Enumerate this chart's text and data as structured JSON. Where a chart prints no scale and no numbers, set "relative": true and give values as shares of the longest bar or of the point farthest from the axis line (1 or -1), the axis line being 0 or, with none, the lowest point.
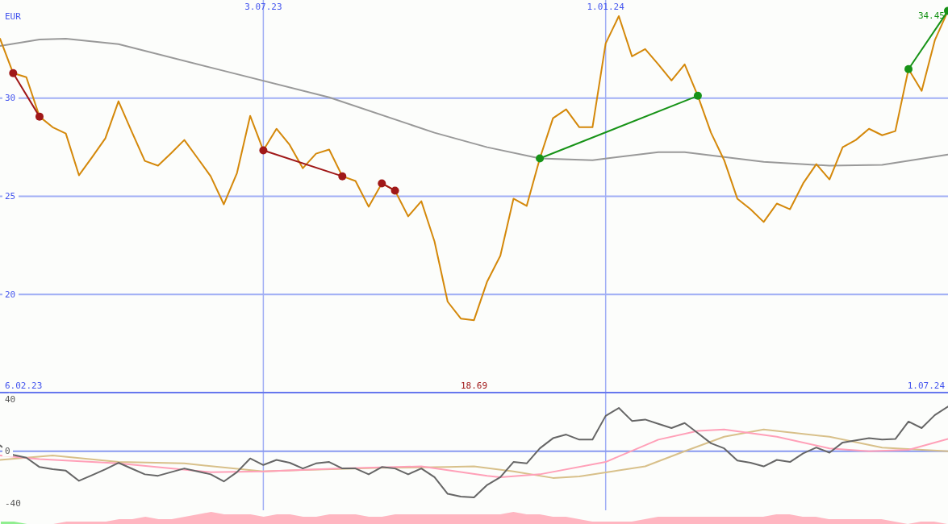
{
  "chart_data": [
    {
      "type": "line",
      "ylabel": "EUR",
      "x": [
        "2023-02-13",
        "2023-02-20",
        "2023-02-27",
        "2023-03-06",
        "2023-03-13",
        "2023-03-20",
        "2023-03-27",
        "2023-04-03",
        "2023-04-10",
        "2023-04-17",
        "2023-04-24",
        "2023-05-01",
        "2023-05-08",
        "2023-05-15",
        "2023-05-22",
        "2023-05-29",
        "2023-06-05",
        "2023-06-12",
        "2023-06-19",
        "2023-06-26",
        "2023-07-03",
        "2023-07-10",
        "2023-07-17",
        "2023-07-24",
        "2023-07-31",
        "2023-08-07",
        "2023-08-14",
        "2023-08-21",
        "2023-08-28",
        "2023-09-04",
        "2023-09-11",
        "2023-09-18",
        "2023-09-25",
        "2023-10-02",
        "2023-10-09",
        "2023-10-16",
        "2023-10-23",
        "2023-10-30",
        "2023-11-06",
        "2023-11-13",
        "2023-11-20",
        "2023-11-27",
        "2023-12-04",
        "2023-12-11",
        "2023-12-18",
        "2023-12-25",
        "2024-01-01",
        "2024-01-08",
        "2024-01-15",
        "2024-01-22",
        "2024-01-29",
        "2024-02-05",
        "2024-02-12",
        "2024-02-19",
        "2024-02-26",
        "2024-03-04",
        "2024-03-11",
        "2024-03-18",
        "2024-03-25",
        "2024-04-01",
        "2024-04-08",
        "2024-04-15",
        "2024-04-22",
        "2024-04-29",
        "2024-05-06",
        "2024-05-13",
        "2024-05-20",
        "2024-05-27",
        "2024-06-03",
        "2024-06-10",
        "2024-06-17",
        "2024-06-24",
        "2024-07-01"
      ],
      "series": [
        {
          "color": "#999999",
          "x": [
            "2023-02-13",
            "2023-03-06",
            "2023-03-20",
            "2023-04-17",
            "2023-06-12",
            "2023-08-07",
            "2023-10-02",
            "2023-10-30",
            "2023-11-27",
            "2023-12-25",
            "2024-01-29",
            "2024-02-12",
            "2024-03-25",
            "2024-04-29",
            "2024-05-27",
            "2024-07-01"
          ],
          "values": [
            32.66,
            32.99,
            33.03,
            32.75,
            31.39,
            30.04,
            28.24,
            27.5,
            26.93,
            26.84,
            27.25,
            27.25,
            26.76,
            26.56,
            26.6,
            27.13
          ]
        },
        {
          "color": "#d4880a",
          "values": [
            33.03,
            31.27,
            31.07,
            29.06,
            28.52,
            28.2,
            26.07,
            27.0,
            27.95,
            29.84,
            28.3,
            26.8,
            26.56,
            27.2,
            27.87,
            26.95,
            26.02,
            24.59,
            26.19,
            29.1,
            27.34,
            28.44,
            27.62,
            26.43,
            27.17,
            27.38,
            26.02,
            25.78,
            24.47,
            25.66,
            25.29,
            23.98,
            24.75,
            22.7,
            19.63,
            18.77,
            18.69,
            20.66,
            21.97,
            24.88,
            24.51,
            26.93,
            28.98,
            29.43,
            28.52,
            28.52,
            32.79,
            34.18,
            32.13,
            32.5,
            31.72,
            30.9,
            31.72,
            30.12,
            28.24,
            26.84,
            24.88,
            24.34,
            23.69,
            24.63,
            24.34,
            25.66,
            26.64,
            25.86,
            27.5,
            27.87,
            28.44,
            28.11,
            28.32,
            31.48,
            30.37,
            32.95,
            34.45
          ]
        },
        {
          "color": "#a01818",
          "marker": "circle",
          "x": [
            "2023-02-20",
            "2023-03-06",
            "2023-05-01",
            "2023-07-03",
            "2023-08-14",
            "2023-08-21",
            "2023-09-04",
            "2023-09-11"
          ],
          "values": [
            31.27,
            29.06,
            null,
            27.34,
            26.02,
            null,
            25.66,
            25.29
          ]
        },
        {
          "color": "#179317",
          "marker": "circle",
          "x": [
            "2023-11-27",
            "2024-02-19",
            "2024-04-01",
            "2024-06-10",
            "2024-07-01"
          ],
          "values": [
            26.93,
            30.12,
            null,
            31.48,
            34.45
          ]
        }
      ],
      "xlim": [
        "2023-02-13",
        "2024-07-01"
      ],
      "xticks": [
        {
          "value": "2023-07-03",
          "label": "3.07.23"
        },
        {
          "value": "2024-01-01",
          "label": "1.01.24"
        }
      ],
      "ylim": [
        15,
        35
      ],
      "yticks": [
        20,
        25,
        30
      ],
      "grid": true,
      "annotations": [
        "6.02.23",
        "18.69",
        "1.07.24",
        {
          "text": "34.45",
          "x": "2024-07-01",
          "y": 34.45
        }
      ]
    },
    {
      "type": "line",
      "x": [
        "2023-02-13",
        "2023-02-20",
        "2023-02-27",
        "2023-03-06",
        "2023-03-13",
        "2023-03-20",
        "2023-03-27",
        "2023-04-03",
        "2023-04-10",
        "2023-04-17",
        "2023-04-24",
        "2023-05-01",
        "2023-05-08",
        "2023-05-15",
        "2023-05-22",
        "2023-05-29",
        "2023-06-05",
        "2023-06-12",
        "2023-06-19",
        "2023-06-26",
        "2023-07-03",
        "2023-07-10",
        "2023-07-17",
        "2023-07-24",
        "2023-07-31",
        "2023-08-07",
        "2023-08-14",
        "2023-08-21",
        "2023-08-28",
        "2023-09-04",
        "2023-09-11",
        "2023-09-18",
        "2023-09-25",
        "2023-10-02",
        "2023-10-09",
        "2023-10-16",
        "2023-10-23",
        "2023-10-30",
        "2023-11-06",
        "2023-11-13",
        "2023-11-20",
        "2023-11-27",
        "2023-12-04",
        "2023-12-11",
        "2023-12-18",
        "2023-12-25",
        "2024-01-01",
        "2024-01-08",
        "2024-01-15",
        "2024-01-22",
        "2024-01-29",
        "2024-02-05",
        "2024-02-12",
        "2024-02-19",
        "2024-02-26",
        "2024-03-04",
        "2024-03-11",
        "2024-03-18",
        "2024-03-25",
        "2024-04-01",
        "2024-04-08",
        "2024-04-15",
        "2024-04-22",
        "2024-04-29",
        "2024-05-06",
        "2024-05-13",
        "2024-05-20",
        "2024-05-27",
        "2024-06-03",
        "2024-06-10",
        "2024-06-17",
        "2024-06-24",
        "2024-07-01"
      ],
      "series": [
        {
          "color": "#d8c08a",
          "x": [
            "2023-02-13",
            "2023-03-13",
            "2023-04-17",
            "2023-05-22",
            "2023-07-03",
            "2023-07-24",
            "2023-09-04",
            "2023-10-09",
            "2023-10-23",
            "2023-11-13",
            "2023-12-04",
            "2023-12-18",
            "2024-01-22",
            "2024-02-12",
            "2024-03-04",
            "2024-03-25",
            "2024-04-29",
            "2024-05-27",
            "2024-07-01"
          ],
          "values": [
            -6.7,
            -3.3,
            -8.3,
            -9.4,
            -15.6,
            -14.4,
            -12.8,
            -12.2,
            -11.7,
            -15.6,
            -20.6,
            -19.4,
            -11.7,
            0,
            11.1,
            16.7,
            11.1,
            2.8,
            0
          ]
        },
        {
          "color": "#ffa0b8",
          "x": [
            "2023-02-13",
            "2023-03-06",
            "2023-04-17",
            "2023-06-05",
            "2023-07-03",
            "2023-08-14",
            "2023-09-25",
            "2023-10-30",
            "2023-11-06",
            "2023-11-27",
            "2024-01-01",
            "2024-01-29",
            "2024-02-19",
            "2024-03-04",
            "2024-04-01",
            "2024-04-29",
            "2024-05-20",
            "2024-06-10",
            "2024-07-01"
          ],
          "values": [
            -3.3,
            -6.1,
            -9.4,
            -16.1,
            -15.6,
            -13.3,
            -11.7,
            -18.9,
            -20,
            -17.8,
            -8.3,
            8.9,
            15.6,
            16.7,
            11.1,
            2.2,
            0,
            1.1,
            9.4
          ]
        },
        {
          "color": "#666666",
          "values": [
            4.4,
            -2.8,
            -5,
            -12.2,
            -13.9,
            -15,
            -22.8,
            -18.4,
            -13.9,
            -8.9,
            -13.4,
            -17.8,
            -18.9,
            -16.1,
            -13.3,
            -15.6,
            -17.8,
            -23.3,
            -16.1,
            -5.6,
            -10.6,
            -6.7,
            -8.9,
            -13.3,
            -9.4,
            -8.3,
            -13.3,
            -13.3,
            -17.8,
            -12.2,
            -13.3,
            -17.8,
            -13.3,
            -20,
            -32.8,
            -35,
            -35.6,
            -26,
            -20,
            -8.3,
            -9.4,
            2.2,
            10,
            12.8,
            8.9,
            8.9,
            27.2,
            33.3,
            23.3,
            24.4,
            21.1,
            17.8,
            21.7,
            13.9,
            6.1,
            2.2,
            -7.2,
            -8.9,
            -11.7,
            -6.7,
            -8.3,
            -1.7,
            2.8,
            -1.1,
            6.7,
            8.3,
            10,
            8.9,
            9.4,
            22.8,
            17.8,
            27.8,
            34.4
          ]
        }
      ],
      "xlim": [
        "2023-02-13",
        "2024-07-01"
      ],
      "xticks": [
        {
          "value": "2023-07-03",
          "label": null
        },
        {
          "value": "2024-01-01",
          "label": null
        }
      ],
      "ylim": [
        -45.5,
        44.5
      ],
      "yticks": [
        -40,
        0,
        40
      ],
      "grid": "x",
      "tick_labels": "y",
      "ref_lines": [
        {
          "axis": "y",
          "value": 0,
          "color": "#8899f0"
        }
      ]
    },
    {
      "type": "area",
      "relative": true,
      "categories": [
        null,
        null,
        null,
        null,
        null,
        null,
        null,
        null,
        null,
        null,
        null,
        null,
        null,
        null,
        null,
        null,
        null,
        null,
        null,
        null,
        null,
        null,
        null,
        null,
        null,
        null,
        null,
        null,
        null,
        null,
        null,
        null,
        null,
        null,
        null,
        null,
        null,
        null,
        null,
        null,
        null,
        null,
        null,
        null,
        null,
        null,
        null,
        null,
        null,
        null,
        null,
        null,
        null,
        null,
        null,
        null,
        null,
        null,
        null,
        null,
        null,
        null,
        null,
        null,
        null,
        null,
        null,
        null,
        null,
        null,
        null,
        null,
        null
      ],
      "series": [
        {
          "color": "#90ee90",
          "values": [
            0.2,
            0.2,
            0,
            null,
            null,
            null,
            null,
            null,
            null,
            null,
            null,
            null,
            null,
            null,
            null,
            null,
            null,
            null,
            null,
            null,
            null,
            null,
            null,
            null,
            null,
            null,
            null,
            null,
            null,
            null,
            null,
            null,
            null,
            null,
            null,
            null,
            null,
            null,
            null,
            null,
            null,
            null,
            null,
            null,
            null,
            null,
            null,
            null,
            null,
            null,
            null,
            null,
            null,
            null,
            null,
            null,
            null,
            null,
            null,
            null,
            null,
            null,
            null,
            null,
            null,
            null,
            null,
            null,
            null,
            null,
            null,
            null,
            null
          ]
        },
        {
          "color": "#ffb6c1",
          "values": [
            null,
            null,
            null,
            null,
            0,
            0.2,
            0.2,
            0.2,
            0.2,
            0.4,
            0.4,
            0.6,
            0.4,
            0.4,
            0.6,
            0.8,
            1,
            0.8,
            0.8,
            0.8,
            0.6,
            0.8,
            0.8,
            0.6,
            0.6,
            0.8,
            0.8,
            0.8,
            0.6,
            0.6,
            0.8,
            0.8,
            0.8,
            0.8,
            0.8,
            0.8,
            0.8,
            0.8,
            0.8,
            1,
            0.8,
            0.8,
            0.6,
            0.6,
            0.4,
            0.2,
            0.2,
            0.2,
            0.2,
            0.4,
            0.6,
            0.6,
            0.6,
            0.6,
            0.6,
            0.6,
            0.6,
            0.6,
            0.6,
            0.8,
            0.8,
            0.6,
            0.6,
            0.4,
            0.4,
            0.4,
            0.4,
            0.4,
            0.2,
            0,
            0.2,
            0.2,
            0
          ]
        }
      ]
    }
  ]
}
